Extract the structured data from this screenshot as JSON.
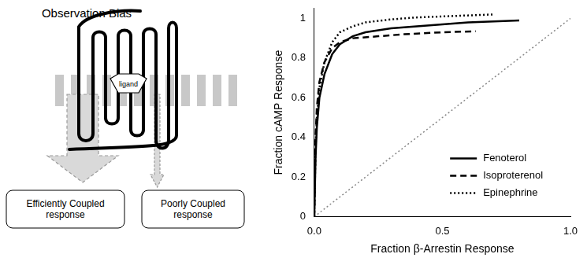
{
  "diagram": {
    "title": "Observation Bias",
    "ligand": "ligand",
    "responses": [
      "Efficiently Coupled response",
      "Poorly Coupled response"
    ]
  },
  "chart_data": {
    "type": "line",
    "x_label": "Fraction β-Arrestin Response",
    "y_label": "Fraction cAMP Response",
    "xlim": [
      0,
      1
    ],
    "xticks": [
      {
        "value": 0,
        "label": "0.0"
      },
      {
        "value": 0.5,
        "label": "0.5"
      },
      {
        "value": 1,
        "label": "1.0"
      }
    ],
    "ylim": [
      0,
      1.05
    ],
    "yticks": [
      0,
      0.2,
      0.4,
      0.6,
      0.8,
      1
    ],
    "grid": false,
    "legend": "lower right",
    "series": [
      {
        "name": "Fenoterol",
        "color": "#000000",
        "line_style": "solid",
        "x": [
          0,
          0.005,
          0.01,
          0.02,
          0.04,
          0.07,
          0.1,
          0.15,
          0.2,
          0.3,
          0.4,
          0.5,
          0.6,
          0.7,
          0.8
        ],
        "values": [
          0,
          0.3,
          0.45,
          0.6,
          0.72,
          0.82,
          0.87,
          0.91,
          0.93,
          0.95,
          0.96,
          0.97,
          0.98,
          0.985,
          0.99
        ]
      },
      {
        "name": "Isoproterenol",
        "color": "#000000",
        "line_style": "dashed",
        "x": [
          0,
          0.005,
          0.01,
          0.02,
          0.04,
          0.07,
          0.1,
          0.15,
          0.25,
          0.35,
          0.5,
          0.63
        ],
        "values": [
          0,
          0.4,
          0.55,
          0.68,
          0.78,
          0.85,
          0.88,
          0.9,
          0.91,
          0.92,
          0.93,
          0.935
        ]
      },
      {
        "name": "Epinephrine",
        "color": "#000000",
        "line_style": "dotted",
        "x": [
          0,
          0.005,
          0.01,
          0.02,
          0.04,
          0.07,
          0.1,
          0.15,
          0.2,
          0.3,
          0.4,
          0.5,
          0.6,
          0.7
        ],
        "values": [
          0,
          0.35,
          0.5,
          0.65,
          0.78,
          0.88,
          0.93,
          0.96,
          0.98,
          0.995,
          1.005,
          1.01,
          1.015,
          1.02
        ]
      },
      {
        "color": "#888888",
        "line_style": "dotted",
        "x": [
          0,
          1
        ],
        "values": [
          0,
          1
        ]
      }
    ]
  }
}
